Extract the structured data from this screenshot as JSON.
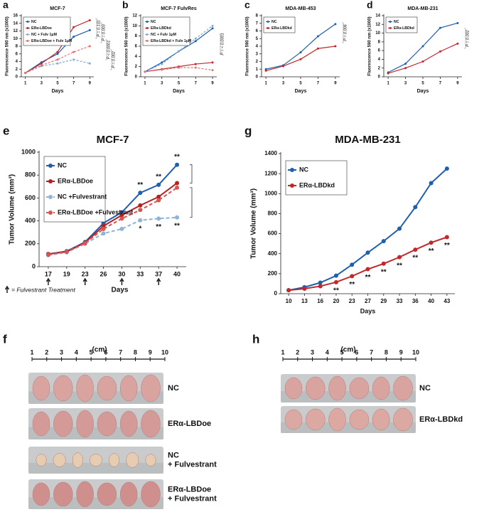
{
  "chart_data": [
    {
      "type": "line",
      "label": "a",
      "title": "MCF-7",
      "x_label": "Days",
      "y_label": "Fluorescence 590 nm (x1000)",
      "x": [
        1,
        3,
        5,
        7,
        9
      ],
      "xlim": [
        0.5,
        9.5
      ],
      "xticks": [
        1,
        3,
        5,
        7,
        9
      ],
      "ylim": [
        0,
        16
      ],
      "yticks": [
        0,
        2,
        4,
        6,
        8,
        10,
        12,
        14,
        16
      ],
      "series": [
        {
          "name": "NC",
          "color": "#1f5fae",
          "values": [
            1,
            3.8,
            6,
            10.5,
            12.2
          ]
        },
        {
          "name": "ERα-LBDoe",
          "color": "#c0282d",
          "values": [
            1,
            3.5,
            6.5,
            13,
            14.8
          ]
        },
        {
          "name": "NC + Fulv 1μM",
          "color": "#7fa9d6",
          "style": "dashed",
          "values": [
            1,
            2.8,
            3.5,
            4.5,
            3.5
          ]
        },
        {
          "name": "ERα-LBDoe + Fulv 1μM",
          "color": "#e0716f",
          "style": "dashed",
          "values": [
            1,
            3,
            4.5,
            6.5,
            8
          ]
        }
      ],
      "annotations": [
        "P = 0.131",
        "P = 0.003",
        "P < 0.0001",
        "P = 0.002"
      ]
    },
    {
      "type": "line",
      "label": "b",
      "title": "MCF-7 FulvRes",
      "x_label": "Days",
      "y_label": "Fluorescence 590 nm (x1000)",
      "x": [
        1,
        3,
        5,
        7,
        9
      ],
      "xlim": [
        0.5,
        9.5
      ],
      "xticks": [
        1,
        3,
        5,
        7,
        9
      ],
      "ylim": [
        0,
        12
      ],
      "yticks": [
        0,
        2,
        4,
        6,
        8,
        10,
        12
      ],
      "series": [
        {
          "name": "NC",
          "color": "#1f5fae",
          "values": [
            1,
            2.8,
            5,
            7,
            9.5
          ]
        },
        {
          "name": "ERα-LBDkd",
          "color": "#c0282d",
          "values": [
            1,
            1.5,
            2,
            2.5,
            2.8
          ]
        },
        {
          "name": "NC + Fulv 1μM",
          "color": "#7fa9d6",
          "style": "dashed",
          "values": [
            1,
            2.5,
            5,
            7.5,
            10
          ]
        },
        {
          "name": "ERα-LBDkd + Fulv 1μM",
          "color": "#e0716f",
          "style": "dashed",
          "values": [
            1,
            1.4,
            1.8,
            1.8,
            1.3
          ]
        }
      ],
      "annotations": [
        "P = < 0.0001"
      ]
    },
    {
      "type": "line",
      "label": "c",
      "title": "MDA-MB-453",
      "x_label": "Days",
      "y_label": "Fluorescence 590 nm (x1000)",
      "x": [
        1,
        3,
        5,
        7,
        9
      ],
      "xlim": [
        0.5,
        9.5
      ],
      "xticks": [
        1,
        3,
        5,
        7,
        9
      ],
      "ylim": [
        0,
        8
      ],
      "yticks": [
        0,
        1,
        2,
        3,
        4,
        5,
        6,
        7,
        8
      ],
      "series": [
        {
          "name": "NC",
          "color": "#1f5fae",
          "values": [
            1,
            1.5,
            3.2,
            5.3,
            6.9
          ]
        },
        {
          "name": "ERα-LBDkd",
          "color": "#c0282d",
          "values": [
            0.8,
            1.4,
            2.3,
            3.7,
            4
          ]
        }
      ],
      "annotations": [
        "P = 0.006"
      ]
    },
    {
      "type": "line",
      "label": "d",
      "title": "MDA-MB-231",
      "x_label": "Days",
      "y_label": "Fluorescence 590 nm (x1000)",
      "x": [
        1,
        3,
        5,
        7,
        9
      ],
      "xlim": [
        0.5,
        9.5
      ],
      "xticks": [
        1,
        3,
        5,
        7,
        9
      ],
      "ylim": [
        0,
        14
      ],
      "yticks": [
        0,
        2,
        4,
        6,
        8,
        10,
        12,
        14
      ],
      "series": [
        {
          "name": "NC",
          "color": "#1f5fae",
          "values": [
            1,
            3,
            7,
            11.2,
            12.3
          ]
        },
        {
          "name": "ERα-LBDkd",
          "color": "#c0282d",
          "values": [
            0.8,
            2,
            3.5,
            5.8,
            7.6
          ]
        }
      ],
      "annotations": [
        "P = 0.002"
      ]
    },
    {
      "type": "line",
      "label": "e",
      "title": "MCF-7",
      "x_label": "Days",
      "y_label": "Tumor Volume (mm³)",
      "categories": [
        17,
        19,
        23,
        26,
        30,
        33,
        37,
        40
      ],
      "ylim": [
        0,
        1000
      ],
      "yticks": [
        0,
        200,
        400,
        600,
        800,
        1000
      ],
      "series": [
        {
          "name": "NC",
          "color": "#1f5fae",
          "values": [
            110,
            135,
            215,
            380,
            475,
            645,
            715,
            890
          ],
          "point_notes": [
            null,
            null,
            null,
            null,
            null,
            "**",
            "**",
            "**"
          ]
        },
        {
          "name": "ERα-LBDoe",
          "color": "#b22222",
          "values": [
            110,
            130,
            210,
            355,
            450,
            535,
            610,
            730
          ]
        },
        {
          "name": "NC +Fulvestrant",
          "color": "#8fb3d9",
          "style": "dashed",
          "values": [
            100,
            125,
            200,
            290,
            330,
            405,
            420,
            430
          ],
          "point_notes": [
            null,
            null,
            null,
            null,
            null,
            "*",
            "**",
            "**"
          ]
        },
        {
          "name": "ERα-LBDoe +Fulvestrant",
          "color": "#d9534f",
          "style": "dashed",
          "values": [
            105,
            130,
            205,
            330,
            420,
            495,
            580,
            690
          ]
        }
      ],
      "treatment_days": [
        17,
        23,
        30,
        37
      ],
      "footnote": "= Fulvestrant Treatment"
    },
    {
      "type": "line",
      "label": "g",
      "title": "MDA-MB-231",
      "x_label": "Days",
      "y_label": "Tumor Volume (mm³)",
      "categories": [
        10,
        13,
        16,
        20,
        23,
        27,
        29,
        33,
        36,
        40,
        43
      ],
      "ylim": [
        0,
        1400
      ],
      "yticks": [
        0,
        200,
        400,
        600,
        800,
        1000,
        1200,
        1400
      ],
      "series": [
        {
          "name": "NC",
          "color": "#1f5fae",
          "values": [
            35,
            65,
            110,
            180,
            290,
            410,
            525,
            650,
            865,
            1105,
            1250
          ]
        },
        {
          "name": "ERα-LBDkd",
          "color": "#c0282d",
          "values": [
            35,
            50,
            75,
            115,
            175,
            245,
            300,
            365,
            440,
            510,
            565
          ],
          "point_notes": [
            null,
            null,
            null,
            "**",
            "**",
            "**",
            "**",
            "**",
            "**",
            "**",
            "**"
          ]
        }
      ]
    }
  ],
  "photo_panels": [
    {
      "label": "f",
      "unit": "(cm)",
      "ruler": [
        1,
        2,
        3,
        4,
        5,
        6,
        7,
        8,
        9,
        10
      ],
      "rows": [
        [
          "NC"
        ],
        [
          "ERα-LBDoe"
        ],
        [
          "NC",
          "+ Fulvestrant"
        ],
        [
          "ERα-LBDoe",
          "+ Fulvestrant"
        ]
      ]
    },
    {
      "label": "h",
      "unit": "(cm)",
      "ruler": [
        1,
        2,
        3,
        4,
        5,
        6,
        7,
        8,
        9,
        10
      ],
      "rows": [
        [
          "NC"
        ],
        [
          "ERα-LBDkd"
        ]
      ]
    }
  ]
}
